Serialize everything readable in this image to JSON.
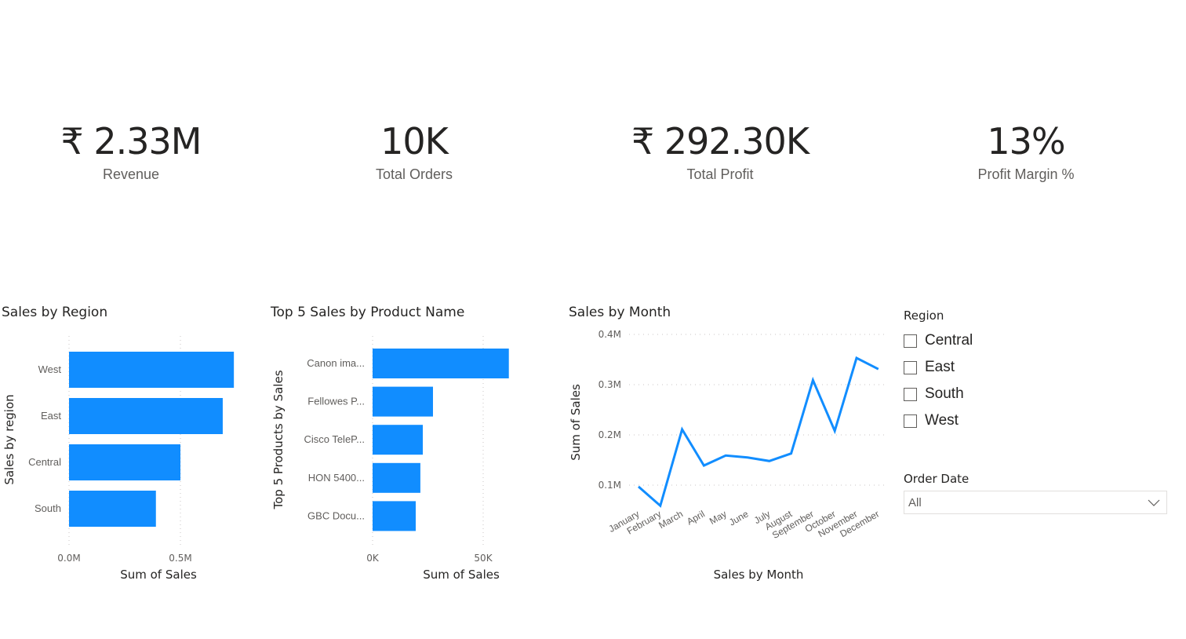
{
  "kpis": [
    {
      "value": "₹ 2.33M",
      "label": "Revenue"
    },
    {
      "value": "10K",
      "label": "Total Orders"
    },
    {
      "value": "₹ 292.30K",
      "label": "Total Profit"
    },
    {
      "value": "13%",
      "label": "Profit Margin %"
    }
  ],
  "colors": {
    "bar": "#118DFF",
    "line": "#118DFF",
    "grid": "#c8c6c4"
  },
  "slicers": {
    "region": {
      "title": "Region",
      "items": [
        {
          "label": "Central",
          "checked": false
        },
        {
          "label": "East",
          "checked": false
        },
        {
          "label": "South",
          "checked": false
        },
        {
          "label": "West",
          "checked": false
        }
      ]
    },
    "order_date": {
      "title": "Order Date",
      "selected": "All",
      "icon": "chevron-down-icon"
    }
  },
  "chart_data": [
    {
      "type": "bar",
      "orientation": "horizontal",
      "title": "Sales by Region",
      "categories": [
        "West",
        "East",
        "Central",
        "South"
      ],
      "values": [
        0.74,
        0.69,
        0.5,
        0.39
      ],
      "unit": "M",
      "xlabel": "Sum of Sales",
      "ylabel": "Sales by region",
      "xticks": [
        "0.0M",
        "0.5M"
      ],
      "xtick_values": [
        0,
        0.5
      ],
      "xlim": [
        0,
        0.74
      ],
      "grid": true
    },
    {
      "type": "bar",
      "orientation": "horizontal",
      "title": "Top 5 Sales by Product Name",
      "categories": [
        "Canon ima...",
        "Fellowes P...",
        "Cisco TeleP...",
        "HON 5400...",
        "GBC Docu..."
      ],
      "values": [
        61.6,
        27.3,
        22.7,
        21.6,
        19.5
      ],
      "unit": "K",
      "xlabel": "Sum of Sales",
      "ylabel": "Top 5 Products by Sales",
      "xticks": [
        "0K",
        "50K"
      ],
      "xtick_values": [
        0,
        50
      ],
      "xlim": [
        0,
        61.6
      ],
      "grid": true
    },
    {
      "type": "line",
      "title": "Sales by Month",
      "categories": [
        "January",
        "February",
        "March",
        "April",
        "May",
        "June",
        "July",
        "August",
        "September",
        "October",
        "November",
        "December"
      ],
      "values": [
        0.097,
        0.059,
        0.211,
        0.139,
        0.159,
        0.155,
        0.148,
        0.163,
        0.309,
        0.208,
        0.353,
        0.331
      ],
      "unit": "M",
      "xlabel": "Sales by Month",
      "ylabel": "Sum of Sales",
      "yticks": [
        "0.1M",
        "0.2M",
        "0.3M",
        "0.4M"
      ],
      "ytick_values": [
        0.1,
        0.2,
        0.3,
        0.4
      ],
      "ylim": [
        0,
        0.4
      ],
      "grid": true
    }
  ]
}
